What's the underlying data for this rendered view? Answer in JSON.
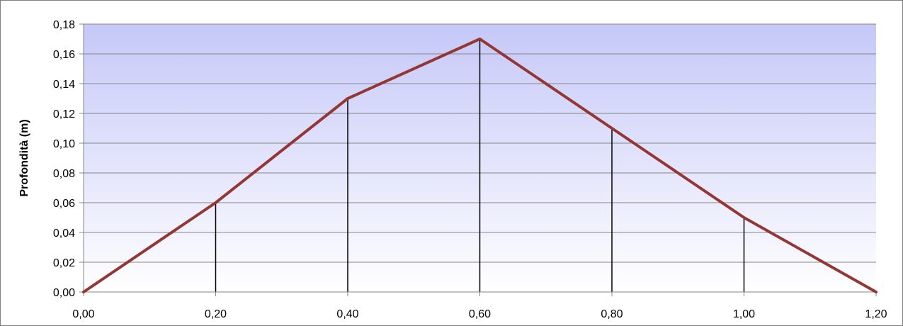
{
  "chart_data": {
    "type": "line",
    "ylabel": "Profondità (m)",
    "xlabel": "",
    "title": "",
    "xlim": [
      0,
      1.2
    ],
    "ylim": [
      0,
      0.18
    ],
    "x_ticks": [
      "0,00",
      "0,20",
      "0,40",
      "0,60",
      "0,80",
      "1,00",
      "1,20"
    ],
    "y_ticks": [
      "0,00",
      "0,02",
      "0,04",
      "0,06",
      "0,08",
      "0,10",
      "0,12",
      "0,14",
      "0,16",
      "0,18"
    ],
    "grid": true,
    "series": [
      {
        "x": [
          0.0,
          0.2,
          0.4,
          0.6,
          0.8,
          1.0,
          1.2
        ],
        "y": [
          0.0,
          0.06,
          0.13,
          0.17,
          0.11,
          0.05,
          0.0
        ]
      }
    ],
    "drop_lines": true,
    "colors": {
      "line": "#943634",
      "plot_top": "#c5c8f8",
      "plot_bottom": "#ffffff",
      "grid": "#868686"
    }
  }
}
